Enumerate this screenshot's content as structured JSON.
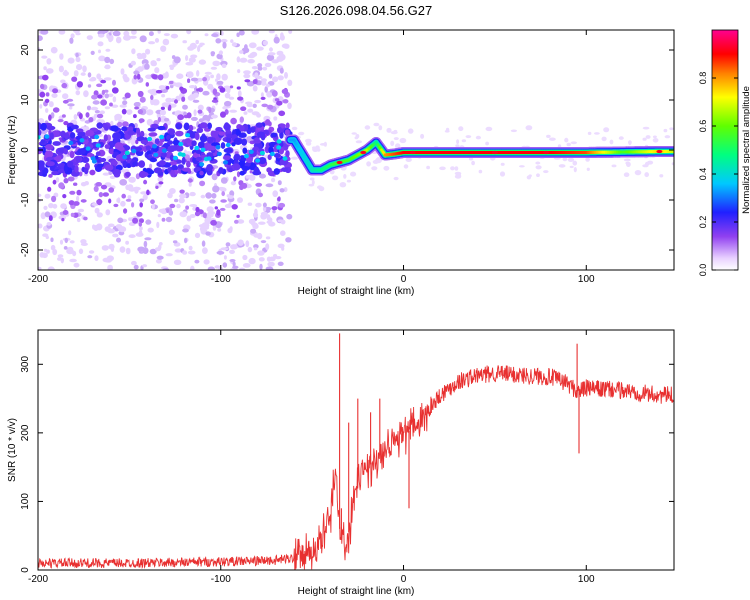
{
  "title": "S126.2026.098.04.56.G27",
  "chart_data": [
    {
      "type": "heatmap",
      "xlabel": "Height of straight line (km)",
      "ylabel": "Frequency (Hz)",
      "xlim": [
        -200,
        148
      ],
      "ylim": [
        -24,
        24
      ],
      "xticks": [
        -200,
        -100,
        0,
        100
      ],
      "yticks": [
        -20,
        -10,
        0,
        10,
        20
      ],
      "colorbar": {
        "label": "Normalized spectral amplitude",
        "range": [
          0,
          1
        ],
        "ticks": [
          0.0,
          0.2,
          0.4,
          0.6,
          0.8
        ]
      },
      "ridge": {
        "x": [
          -60,
          -55,
          -50,
          -45,
          -40,
          -35,
          -30,
          -25,
          -20,
          -15,
          -10,
          -5,
          0,
          20,
          40,
          60,
          80,
          100,
          120,
          140,
          148
        ],
        "frequency": [
          2,
          -1,
          -4,
          -4,
          -3,
          -2.5,
          -2,
          -1,
          0,
          1.5,
          -1,
          -0.8,
          -0.5,
          -0.5,
          -0.5,
          -0.5,
          -0.5,
          -0.5,
          -0.4,
          -0.3,
          -0.3
        ],
        "amplitude": [
          0.35,
          0.4,
          0.45,
          0.5,
          0.55,
          0.6,
          0.6,
          0.65,
          0.7,
          0.5,
          0.85,
          0.9,
          0.95,
          0.95,
          0.95,
          0.95,
          0.95,
          0.9,
          0.6,
          0.8,
          0.7
        ]
      },
      "noise_region_x": [
        -200,
        -62
      ],
      "noise_band_hz": [
        -5,
        5
      ]
    },
    {
      "type": "line",
      "xlabel": "Height of straight line (km)",
      "ylabel": "SNR (10 * v/v)",
      "xlim": [
        -200,
        148
      ],
      "ylim": [
        0,
        350
      ],
      "xticks": [
        -200,
        -100,
        0,
        100
      ],
      "yticks": [
        0,
        100,
        200,
        300
      ],
      "color": "#e83030",
      "series": [
        {
          "name": "SNR",
          "x": [
            -200,
            -150,
            -100,
            -70,
            -55,
            -45,
            -40,
            -37,
            -35,
            -32,
            -28,
            -25,
            -20,
            -15,
            -10,
            -5,
            0,
            5,
            10,
            15,
            20,
            25,
            30,
            40,
            50,
            60,
            70,
            80,
            90,
            95,
            100,
            120,
            140,
            148
          ],
          "values": [
            10,
            10,
            12,
            14,
            20,
            40,
            80,
            150,
            60,
            30,
            80,
            130,
            150,
            160,
            180,
            195,
            200,
            205,
            220,
            240,
            255,
            265,
            275,
            283,
            287,
            285,
            283,
            282,
            272,
            260,
            265,
            262,
            255,
            255
          ]
        }
      ],
      "spikes": [
        {
          "x": -35,
          "value": 345
        },
        {
          "x": -34,
          "value": 90
        },
        {
          "x": -30,
          "value": 215
        },
        {
          "x": -25,
          "value": 250
        },
        {
          "x": -18,
          "value": 230
        },
        {
          "x": -13,
          "value": 250
        },
        {
          "x": -1,
          "value": 185
        },
        {
          "x": 3,
          "value": 90
        },
        {
          "x": 95,
          "value": 330
        },
        {
          "x": 96,
          "value": 170
        }
      ]
    }
  ]
}
